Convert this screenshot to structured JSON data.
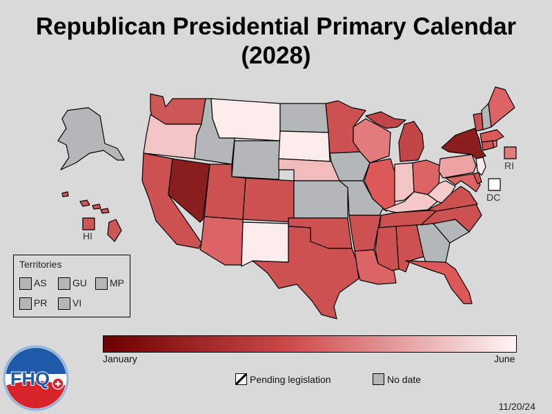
{
  "title": "Republican Presidential Primary Calendar\n(2028)",
  "colors": {
    "background": "#d9d9d9",
    "no_date": "#b4b7b8",
    "scale_start": "#6b0000",
    "scale_mid": "#cc4a4a",
    "scale_end": "#fff6f6"
  },
  "colorbar": {
    "start_label": "January",
    "end_label": "June"
  },
  "legend": {
    "pending_label": "Pending legislation",
    "nodate_label": "No date"
  },
  "territories": {
    "title": "Territories",
    "items": [
      {
        "code": "AS",
        "color": "#b4b7b8"
      },
      {
        "code": "GU",
        "color": "#b4b7b8"
      },
      {
        "code": "MP",
        "color": "#b4b7b8"
      },
      {
        "code": "PR",
        "color": "#b4b7b8"
      },
      {
        "code": "VI",
        "color": "#b4b7b8"
      }
    ]
  },
  "callouts": {
    "ri": "RI",
    "dc": "DC",
    "hi": "HI"
  },
  "date": "11/20/24",
  "logo_text": "FHQ",
  "states": {
    "WA": "#cd5757",
    "OR": "#f2c4c4",
    "CA": "#cd5151",
    "NV": "#8a1e1e",
    "ID": "#b4b7b8",
    "MT": "#fcecec",
    "WY": "#b4b7b8",
    "UT": "#cd5151",
    "AZ": "#dd6464",
    "CO": "#cd5151",
    "NM": "#fcecec",
    "ND": "#b4b7b8",
    "SD": "#fcecec",
    "NE": "#f2bcbc",
    "KS": "#b4b7b8",
    "OK": "#cd5151",
    "TX": "#cd5151",
    "MN": "#cd5151",
    "IA": "#b4b7b8",
    "MO": "#b4b7b8",
    "AR": "#cd5151",
    "LA": "#dd6464",
    "WI": "#e27b7b",
    "IL": "#dd5858",
    "MI": "#c24646",
    "IN": "#f2c4c4",
    "OH": "#dd6464",
    "KY": "#f5c8c8",
    "TN": "#cd5151",
    "MS": "#cd5151",
    "AL": "#cd5151",
    "GA": "#b4b7b8",
    "FL": "#dd5858",
    "SC": "#b4b7b8",
    "NC": "#cd5151",
    "VA": "#cd5151",
    "WV": "#f5cccc",
    "PA": "#eea3a3",
    "NY": "#8a1e1e",
    "VT": "#cd5151",
    "NH": "#b4b7b8",
    "ME": "#dd6464",
    "MA": "#dd5858",
    "CT": "#cd5151",
    "NJ": "#fcecec",
    "DE": "#cd5151",
    "MD": "#dd6464",
    "RI": "#e27b7b",
    "DC": "#ffffff",
    "AK": "#b4b7b8",
    "HI": "#cd5757"
  }
}
